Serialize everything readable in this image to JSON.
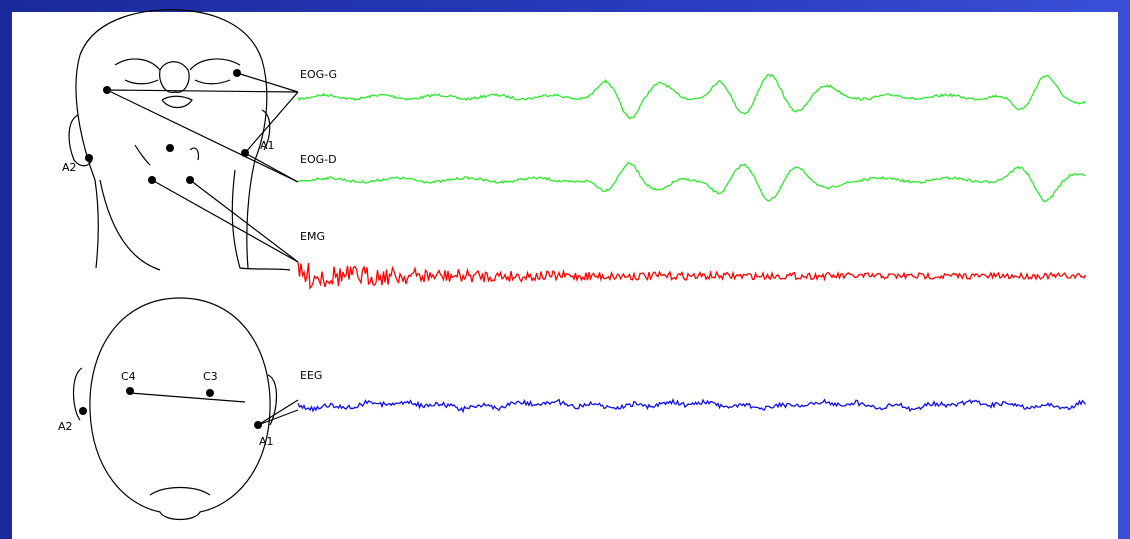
{
  "signals": [
    {
      "label": "EOG-G"
    },
    {
      "label": "EOG-D"
    },
    {
      "label": "EMG"
    },
    {
      "label": "EEG"
    }
  ],
  "face_electrodes": [
    "A2",
    "A1"
  ],
  "scalp_electrodes": [
    "C4",
    "C3",
    "A2",
    "A1"
  ]
}
